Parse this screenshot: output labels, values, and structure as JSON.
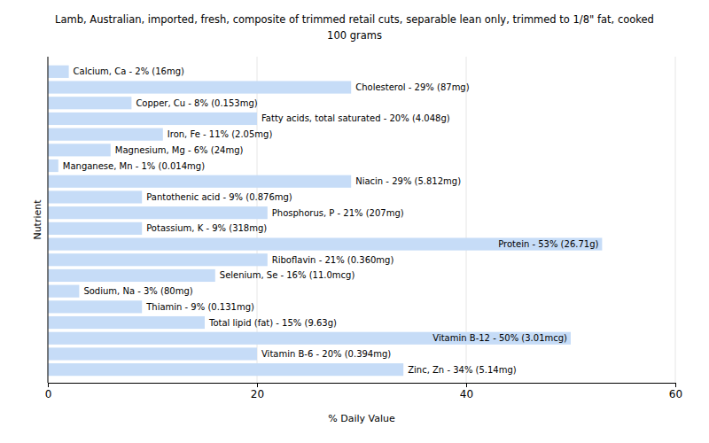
{
  "chart_data": {
    "type": "bar",
    "orientation": "horizontal",
    "title": "Lamb, Australian, imported, fresh, composite of trimmed retail cuts, separable lean only, trimmed to 1/8\" fat, cooked",
    "subtitle": "100 grams",
    "x_label": "% Daily Value",
    "y_label": "Nutrient",
    "categories": [
      "Calcium, Ca - 2% (16mg)",
      "Cholesterol - 29% (87mg)",
      "Copper, Cu - 8% (0.153mg)",
      "Fatty acids, total saturated - 20% (4.048g)",
      "Iron, Fe - 11% (2.05mg)",
      "Magnesium, Mg - 6% (24mg)",
      "Manganese, Mn - 1% (0.014mg)",
      "Niacin - 29% (5.812mg)",
      "Pantothenic acid - 9% (0.876mg)",
      "Phosphorus, P - 21% (207mg)",
      "Potassium, K - 9% (318mg)",
      "Protein - 53% (26.71g)",
      "Riboflavin - 21% (0.360mg)",
      "Selenium, Se - 16% (11.0mcg)",
      "Sodium, Na - 3% (80mg)",
      "Thiamin - 9% (0.131mg)",
      "Total lipid (fat) - 15% (9.63g)",
      "Vitamin B-12 - 50% (3.01mcg)",
      "Vitamin B-6 - 20% (0.394mg)",
      "Zinc, Zn - 34% (5.14mg)"
    ],
    "values": [
      2,
      29,
      8,
      20,
      11,
      6,
      1,
      29,
      9,
      21,
      9,
      53,
      21,
      16,
      3,
      9,
      15,
      50,
      20,
      34
    ],
    "color": "#c6dcf7",
    "xlim": [
      0,
      60
    ],
    "xticks": [
      0,
      20,
      40,
      60
    ],
    "grid": true,
    "tick_labels": "x"
  }
}
